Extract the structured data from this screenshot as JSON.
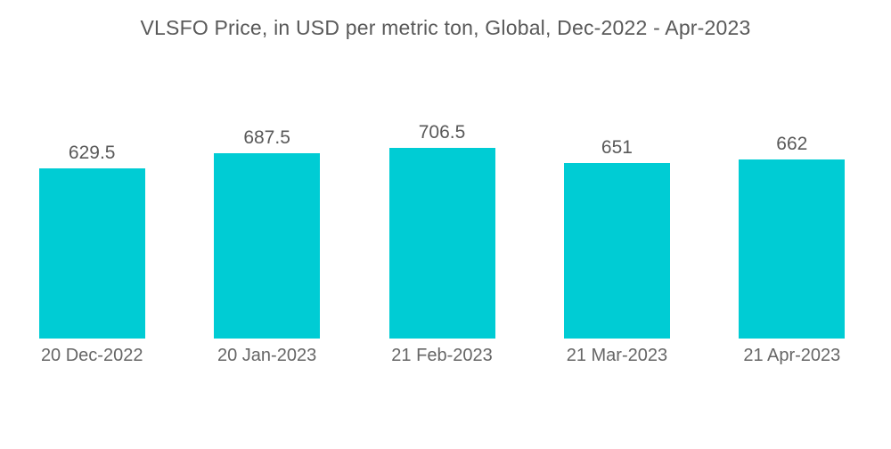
{
  "title": "VLSFO Price, in USD per metric ton, Global, Dec-2022 - Apr-2023",
  "chart_data": {
    "type": "bar",
    "title": "VLSFO Price, in USD per metric ton, Global, Dec-2022 - Apr-2023",
    "categories": [
      "20 Dec-2022",
      "20 Jan-2023",
      "21 Feb-2023",
      "21 Mar-2023",
      "21 Apr-2023"
    ],
    "values": [
      629.5,
      687.5,
      706.5,
      651,
      662
    ],
    "value_labels": [
      "629.5",
      "687.5",
      "706.5",
      "651",
      "662"
    ],
    "xlabel": "",
    "ylabel": "",
    "ylim": [
      0,
      706.5
    ],
    "grid": false,
    "legend": false,
    "bar_color": "#00CCD4"
  },
  "colors": {
    "bar": "#00CCD4",
    "title_text": "#595959",
    "value_text": "#595959",
    "category_text": "#666666",
    "background": "#ffffff"
  }
}
